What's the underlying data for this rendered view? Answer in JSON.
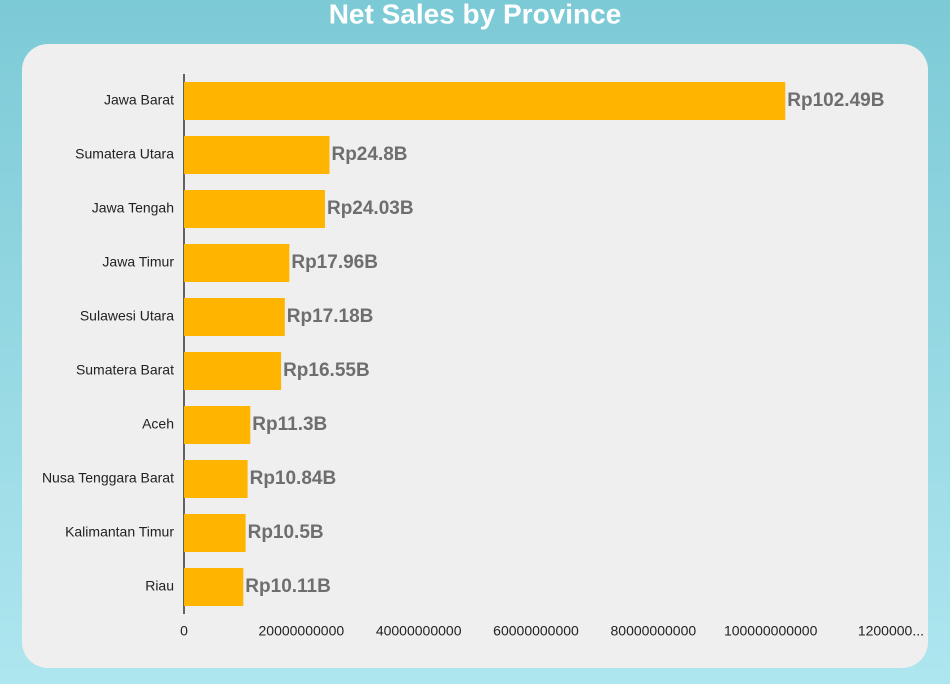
{
  "chart_data": {
    "type": "hbar",
    "title": "Net Sales by Province",
    "categories": [
      "Jawa Barat",
      "Sumatera Utara",
      "Jawa Tengah",
      "Jawa Timur",
      "Sulawesi Utara",
      "Sumatera Barat",
      "Aceh",
      "Nusa Tenggara Barat",
      "Kalimantan Timur",
      "Riau"
    ],
    "values": [
      102490000000,
      24800000000,
      24030000000,
      17960000000,
      17180000000,
      16550000000,
      11300000000,
      10840000000,
      10500000000,
      10110000000
    ],
    "value_labels": [
      "Rp102.49B",
      "Rp24.8B",
      "Rp24.03B",
      "Rp17.96B",
      "Rp17.18B",
      "Rp16.55B",
      "Rp11.3B",
      "Rp10.84B",
      "Rp10.5B",
      "Rp10.11B"
    ],
    "color": "#ffb400",
    "xlim": [
      0,
      120000000000
    ],
    "xticks": [
      0,
      20000000000,
      40000000000,
      60000000000,
      80000000000,
      100000000000,
      {
        "value": 120000000000,
        "label": "1200000..."
      }
    ]
  }
}
